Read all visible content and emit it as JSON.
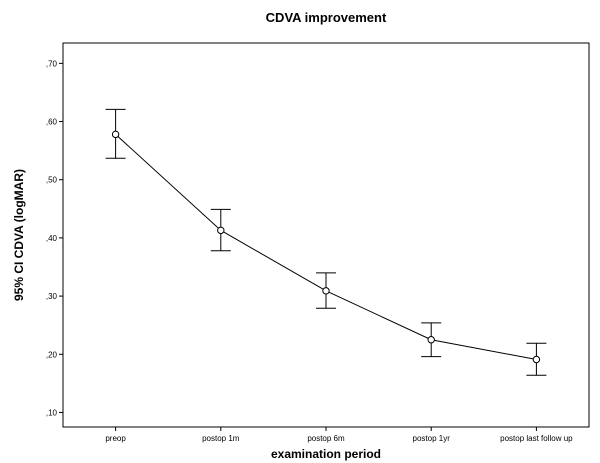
{
  "chart_data": {
    "type": "line",
    "title": "CDVA improvement",
    "xlabel": "examination period",
    "ylabel": "95% CI CDVA (logMAR)",
    "categories": [
      "preop",
      "postop 1m",
      "postop 6m",
      "postop 1yr",
      "postop last follow up"
    ],
    "series": [
      {
        "values": [
          0.578,
          0.413,
          0.309,
          0.225,
          0.191
        ],
        "ci_lower": [
          0.537,
          0.378,
          0.279,
          0.196,
          0.164
        ],
        "ci_upper": [
          0.621,
          0.449,
          0.34,
          0.254,
          0.219
        ]
      }
    ],
    "y_ticks": [
      0.1,
      0.2,
      0.3,
      0.4,
      0.5,
      0.6,
      0.7
    ],
    "y_tick_labels": [
      ",10",
      ",20",
      ",30",
      ",40",
      ",50",
      ",60",
      ",70"
    ],
    "ylim": [
      0.075,
      0.735
    ],
    "grid": false,
    "legend": "none",
    "line_color": "#000000"
  }
}
